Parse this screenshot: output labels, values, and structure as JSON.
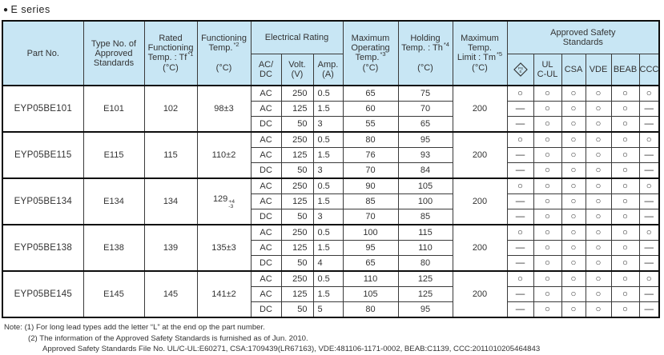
{
  "title": {
    "bullet": "●",
    "text": "E series"
  },
  "colors": {
    "header_bg": "#c8e6f4",
    "border": "#3a3a3a",
    "border_strong": "#0d0d0d",
    "text": "#333333"
  },
  "header": {
    "part_no": "Part No.",
    "type_no": "Type No. of\nApproved\nStandards",
    "rated": {
      "text": "Rated\nFunctioning\nTemp. : Tf",
      "sup": "*1",
      "unit": "(°C)"
    },
    "functioning": {
      "text": "Functioning\nTemp.",
      "sup": "*2",
      "unit": "(°C)"
    },
    "electrical_rating": "Electrical Rating",
    "acdc": "AC/\nDC",
    "volt": "Volt.\n(V)",
    "amp": "Amp.\n(A)",
    "max_operating": {
      "text": "Maximum\nOperating\nTemp.",
      "sup": "*3",
      "unit": "(°C)"
    },
    "holding": {
      "text": "Holding\nTemp. : Th",
      "sup": "*4",
      "unit": "(°C)"
    },
    "max_temp_limit": {
      "text": "Maximum\nTemp.\nLimit : Tm",
      "sup": "*5",
      "unit": "(°C)"
    },
    "approved_safety": "Approved Safety\nStandards",
    "pse_line1": "PS",
    "pse_line2": "E",
    "ul": "UL\nC-UL",
    "csa": "CSA",
    "vde": "VDE",
    "beab": "BEAB",
    "ccc": "CCC"
  },
  "symbols": {
    "approved": "○",
    "not_approved": "—"
  },
  "groups": [
    {
      "part_no": "EYP05BE101",
      "type_no": "E101",
      "rated_tf": "102",
      "functioning": {
        "text": "98±3"
      },
      "max_temp_limit": "200",
      "rows": [
        {
          "acdc": "AC",
          "volt": "250",
          "amp": "0.5",
          "max_op": "65",
          "holding": "75",
          "approvals": [
            "○",
            "○",
            "○",
            "○",
            "○",
            "○"
          ]
        },
        {
          "acdc": "AC",
          "volt": "125",
          "amp": "1.5",
          "max_op": "60",
          "holding": "70",
          "approvals": [
            "—",
            "○",
            "○",
            "○",
            "○",
            "—"
          ]
        },
        {
          "acdc": "DC",
          "volt": "50",
          "amp": "3",
          "max_op": "55",
          "holding": "65",
          "approvals": [
            "—",
            "○",
            "○",
            "○",
            "○",
            "—"
          ]
        }
      ]
    },
    {
      "part_no": "EYP05BE115",
      "type_no": "E115",
      "rated_tf": "115",
      "functioning": {
        "text": "110±2"
      },
      "max_temp_limit": "200",
      "rows": [
        {
          "acdc": "AC",
          "volt": "250",
          "amp": "0.5",
          "max_op": "80",
          "holding": "95",
          "approvals": [
            "○",
            "○",
            "○",
            "○",
            "○",
            "○"
          ]
        },
        {
          "acdc": "AC",
          "volt": "125",
          "amp": "1.5",
          "max_op": "76",
          "holding": "93",
          "approvals": [
            "—",
            "○",
            "○",
            "○",
            "○",
            "—"
          ]
        },
        {
          "acdc": "DC",
          "volt": "50",
          "amp": "3",
          "max_op": "70",
          "holding": "84",
          "approvals": [
            "—",
            "○",
            "○",
            "○",
            "○",
            "—"
          ]
        }
      ]
    },
    {
      "part_no": "EYP05BE134",
      "type_no": "E134",
      "rated_tf": "134",
      "functioning": {
        "text": "129",
        "plus": "+4",
        "minus": "-3"
      },
      "max_temp_limit": "200",
      "rows": [
        {
          "acdc": "AC",
          "volt": "250",
          "amp": "0.5",
          "max_op": "90",
          "holding": "105",
          "approvals": [
            "○",
            "○",
            "○",
            "○",
            "○",
            "○"
          ]
        },
        {
          "acdc": "AC",
          "volt": "125",
          "amp": "1.5",
          "max_op": "85",
          "holding": "100",
          "approvals": [
            "—",
            "○",
            "○",
            "○",
            "○",
            "—"
          ]
        },
        {
          "acdc": "DC",
          "volt": "50",
          "amp": "3",
          "max_op": "70",
          "holding": "85",
          "approvals": [
            "—",
            "○",
            "○",
            "○",
            "○",
            "—"
          ]
        }
      ]
    },
    {
      "part_no": "EYP05BE138",
      "type_no": "E138",
      "rated_tf": "139",
      "functioning": {
        "text": "135±3"
      },
      "max_temp_limit": "200",
      "rows": [
        {
          "acdc": "AC",
          "volt": "250",
          "amp": "0.5",
          "max_op": "100",
          "holding": "115",
          "approvals": [
            "○",
            "○",
            "○",
            "○",
            "○",
            "○"
          ]
        },
        {
          "acdc": "AC",
          "volt": "125",
          "amp": "1.5",
          "max_op": "95",
          "holding": "110",
          "approvals": [
            "—",
            "○",
            "○",
            "○",
            "○",
            "—"
          ]
        },
        {
          "acdc": "DC",
          "volt": "50",
          "amp": "4",
          "max_op": "65",
          "holding": "80",
          "approvals": [
            "—",
            "○",
            "○",
            "○",
            "○",
            "—"
          ]
        }
      ]
    },
    {
      "part_no": "EYP05BE145",
      "type_no": "E145",
      "rated_tf": "145",
      "functioning": {
        "text": "141±2"
      },
      "max_temp_limit": "200",
      "rows": [
        {
          "acdc": "AC",
          "volt": "250",
          "amp": "0.5",
          "max_op": "110",
          "holding": "125",
          "approvals": [
            "○",
            "○",
            "○",
            "○",
            "○",
            "○"
          ]
        },
        {
          "acdc": "AC",
          "volt": "125",
          "amp": "1.5",
          "max_op": "105",
          "holding": "125",
          "approvals": [
            "—",
            "○",
            "○",
            "○",
            "○",
            "—"
          ]
        },
        {
          "acdc": "DC",
          "volt": "50",
          "amp": "5",
          "max_op": "80",
          "holding": "95",
          "approvals": [
            "—",
            "○",
            "○",
            "○",
            "○",
            "—"
          ]
        }
      ]
    }
  ],
  "notes": [
    "Note: (1) For long lead types add the letter “L” at the end op the part number.",
    "(2) The information of the Approved Safety Standards is furnished as of Jun. 2010.",
    "Approved Safety Standards File No. UL/C-UL:E60271, CSA:1709439(LR67163), VDE:481106-1171-0002, BEAB:C1139, CCC:2011010205464843"
  ]
}
